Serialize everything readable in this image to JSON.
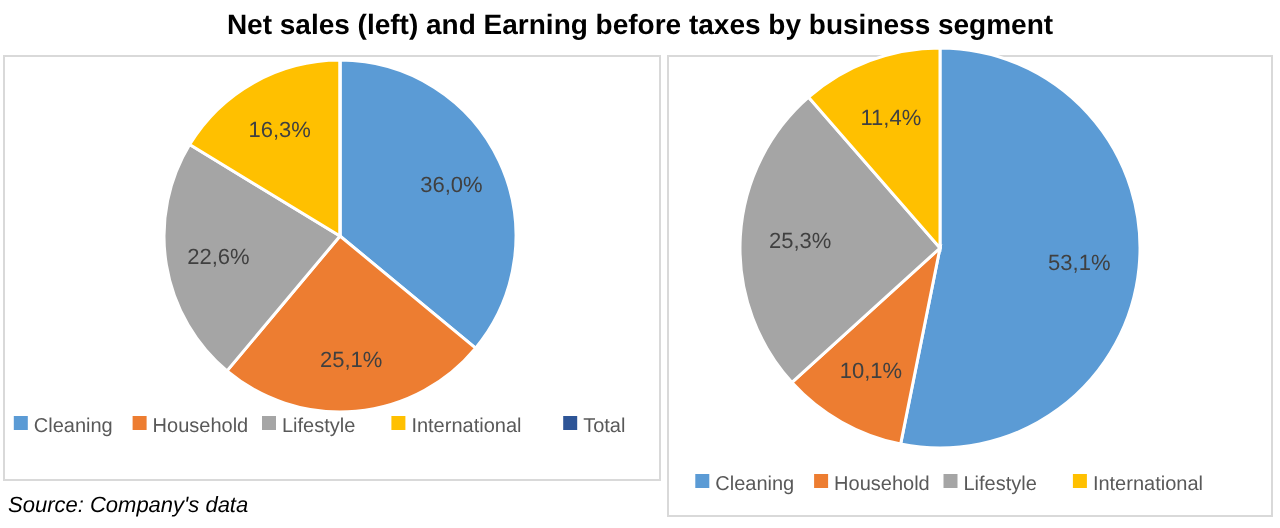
{
  "chart_data": [
    {
      "type": "pie",
      "title": "Net sales (left) and Earning before taxes by business segment",
      "categories": [
        "Cleaning",
        "Household",
        "Lifestyle",
        "International",
        "Total"
      ],
      "values": [
        36.0,
        25.1,
        22.6,
        16.3,
        0
      ],
      "value_labels": [
        "36,0%",
        "25,1%",
        "22,6%",
        "16,3%",
        null
      ],
      "colors": [
        "#5b9bd5",
        "#ed7d31",
        "#a5a5a5",
        "#ffc000",
        "#2e5597"
      ],
      "legend": "bottom",
      "annotations": [
        "Source: Company's data"
      ]
    },
    {
      "type": "pie",
      "categories": [
        "Cleaning",
        "Household",
        "Lifestyle",
        "International"
      ],
      "values": [
        53.1,
        10.1,
        25.3,
        11.4
      ],
      "value_labels": [
        "53,1%",
        "10,1%",
        "25,3%",
        "11,4%"
      ],
      "colors": [
        "#5b9bd5",
        "#ed7d31",
        "#a5a5a5",
        "#ffc000"
      ],
      "legend": "bottom"
    }
  ]
}
